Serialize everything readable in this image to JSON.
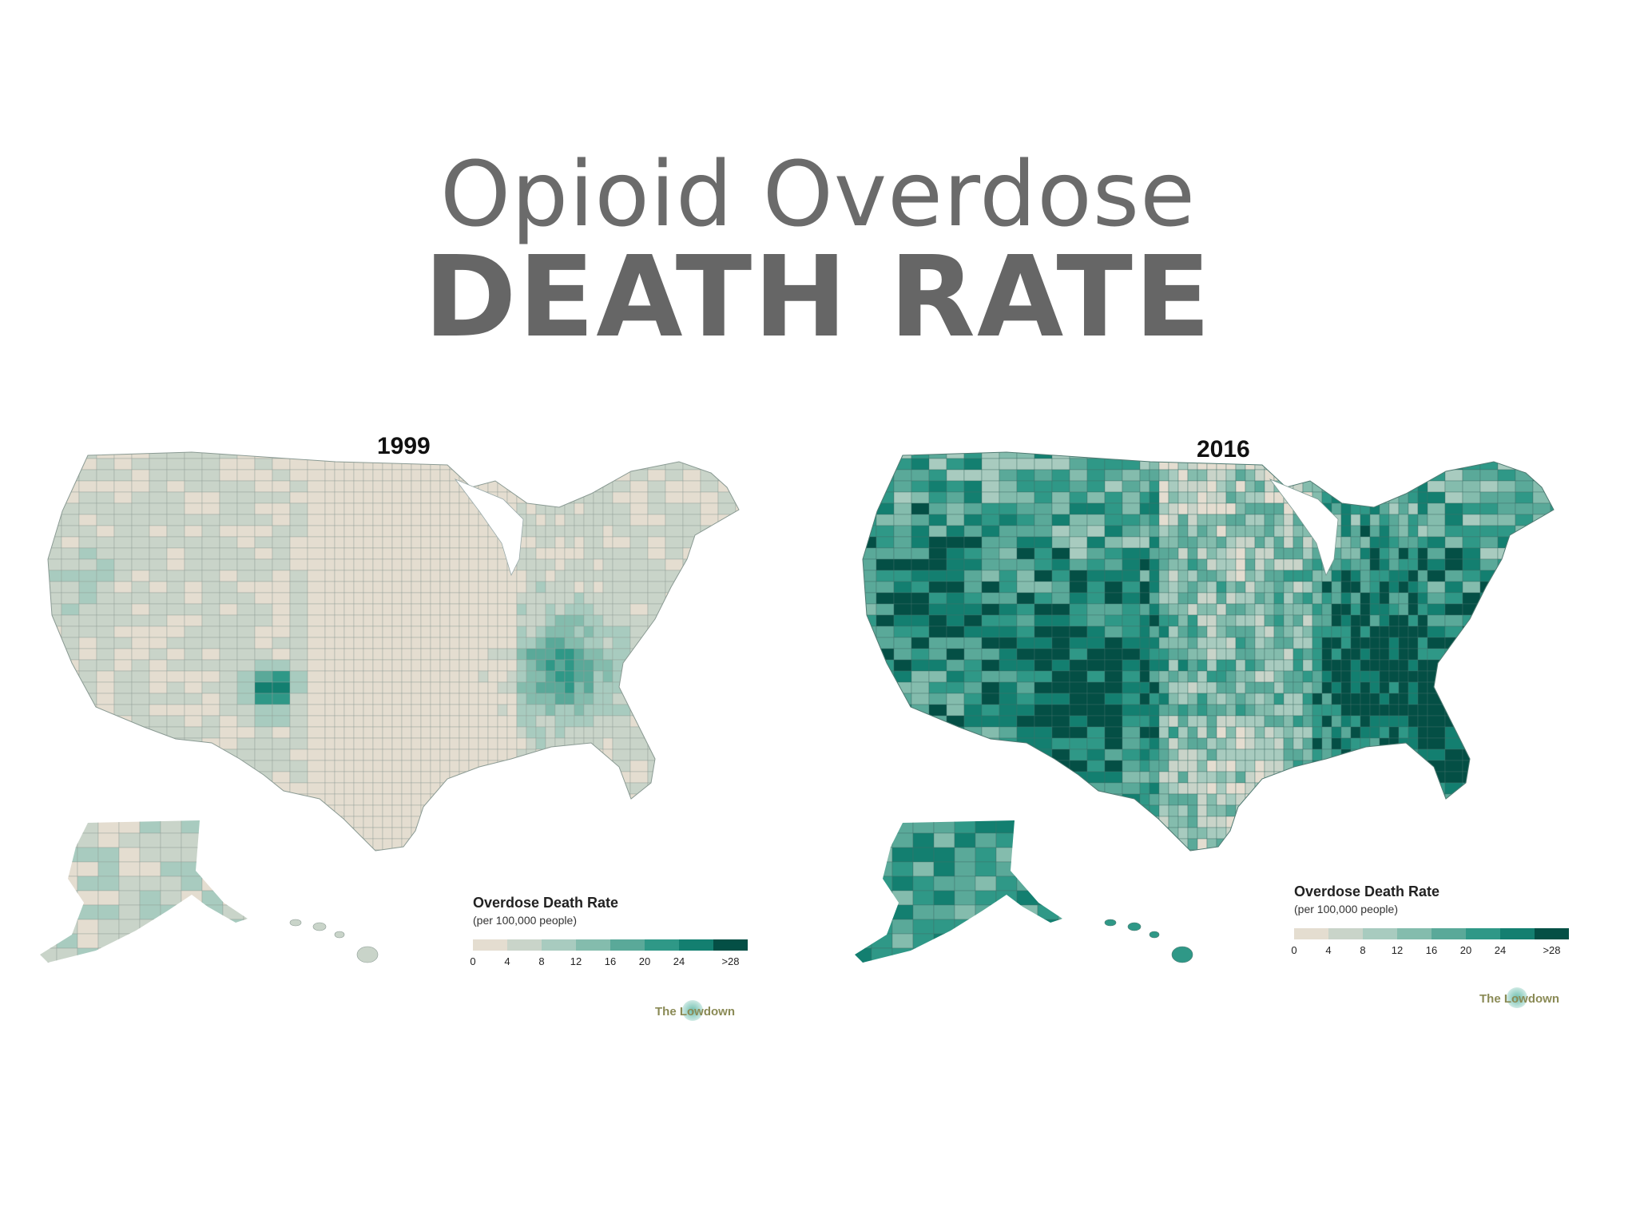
{
  "title": {
    "line1": "Opioid Overdose",
    "line2": "DEATH RATE"
  },
  "maps": [
    {
      "year": "1999",
      "intensity": 0.18,
      "hotspots": [
        "Kentucky/West Virginia",
        "New Mexico (Rio Arriba)"
      ]
    },
    {
      "year": "2016",
      "intensity": 0.62,
      "hotspots": [
        "Appalachia",
        "Southwest",
        "Pacific Northwest",
        "Florida",
        "Alaska"
      ]
    }
  ],
  "legend": {
    "title": "Overdose Death Rate",
    "subtitle": "(per 100,000 people)",
    "ticks": [
      "0",
      "4",
      "8",
      "12",
      "16",
      "20",
      "24",
      ">28"
    ],
    "colors": [
      "#e4ddd0",
      "#c9d4c9",
      "#a8cbbf",
      "#84bcad",
      "#5aa999",
      "#2f9887",
      "#137f70",
      "#044f45"
    ]
  },
  "brand": {
    "name": "The Lowdown"
  }
}
